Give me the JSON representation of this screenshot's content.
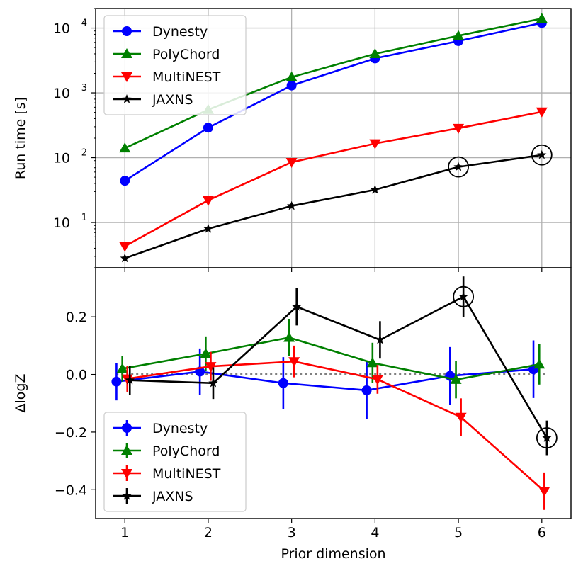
{
  "chart_data": [
    {
      "type": "line",
      "yscale": "log",
      "ylabel": "Run time [s]",
      "xlabel": "",
      "x": [
        1,
        2,
        3,
        4,
        5,
        6
      ],
      "xlim": [
        0.65,
        6.35
      ],
      "ylim": [
        2.0,
        20000
      ],
      "grid": true,
      "xticks": [
        1,
        2,
        3,
        4,
        5,
        6
      ],
      "yticks": [
        {
          "value": 10,
          "base": "10",
          "exp": "1"
        },
        {
          "value": 100,
          "base": "10",
          "exp": "2"
        },
        {
          "value": 1000,
          "base": "10",
          "exp": "3"
        },
        {
          "value": 10000,
          "base": "10",
          "exp": "4"
        }
      ],
      "legend_position": "top-left",
      "series": [
        {
          "name": "Dynesty",
          "color": "#0000ff",
          "marker": "circle",
          "values": [
            44,
            290,
            1300,
            3400,
            6300,
            12000
          ]
        },
        {
          "name": "PolyChord",
          "color": "#008000",
          "marker": "triangle-up",
          "values": [
            140,
            550,
            1750,
            4000,
            7600,
            14000
          ]
        },
        {
          "name": "MultiNEST",
          "color": "#ff0000",
          "marker": "triangle-down",
          "values": [
            4.3,
            22,
            85,
            165,
            285,
            510
          ]
        },
        {
          "name": "JAXNS",
          "color": "#000000",
          "marker": "star",
          "values": [
            2.8,
            8,
            18,
            32,
            72,
            110
          ]
        }
      ],
      "circled_points": [
        {
          "series": "JAXNS",
          "x": 5
        },
        {
          "series": "JAXNS",
          "x": 6
        }
      ]
    },
    {
      "type": "line",
      "ylabel": "ΔlogZ",
      "xlabel": "Prior dimension",
      "x": [
        1,
        2,
        3,
        4,
        5,
        6
      ],
      "xlim": [
        0.65,
        6.35
      ],
      "ylim": [
        -0.5,
        0.37
      ],
      "grid": false,
      "xticks": [
        1,
        2,
        3,
        4,
        5,
        6
      ],
      "yticks": [
        {
          "value": 0.2,
          "label": "0.2"
        },
        {
          "value": 0.0,
          "label": "0.0"
        },
        {
          "value": -0.2,
          "label": "−0.2"
        },
        {
          "value": -0.4,
          "label": "−0.4"
        }
      ],
      "reference_line": {
        "y": 0,
        "style": "dotted",
        "color": "#808080"
      },
      "legend_position": "bottom-left",
      "series": [
        {
          "name": "Dynesty",
          "color": "#0000ff",
          "marker": "circle",
          "x_offset": -0.1,
          "values": [
            -0.025,
            0.01,
            -0.03,
            -0.055,
            -0.005,
            0.018
          ],
          "errors": [
            0.065,
            0.08,
            0.09,
            0.1,
            0.1,
            0.1
          ]
        },
        {
          "name": "PolyChord",
          "color": "#008000",
          "marker": "triangle-up",
          "x_offset": -0.03,
          "values": [
            0.02,
            0.072,
            0.128,
            0.04,
            -0.018,
            0.035
          ],
          "errors": [
            0.045,
            0.06,
            0.065,
            0.07,
            0.065,
            0.07
          ]
        },
        {
          "name": "MultiNEST",
          "color": "#ff0000",
          "marker": "triangle-down",
          "x_offset": 0.03,
          "values": [
            -0.015,
            0.028,
            0.045,
            -0.017,
            -0.148,
            -0.405
          ],
          "errors": [
            0.045,
            0.05,
            0.055,
            0.05,
            0.065,
            0.065
          ]
        },
        {
          "name": "JAXNS",
          "color": "#000000",
          "marker": "star",
          "x_offset": 0.06,
          "values": [
            -0.02,
            -0.03,
            0.235,
            0.12,
            0.27,
            -0.22
          ],
          "errors": [
            0.05,
            0.055,
            0.065,
            0.065,
            0.07,
            0.06
          ]
        }
      ],
      "circled_points": [
        {
          "series": "JAXNS",
          "x": 5
        },
        {
          "series": "JAXNS",
          "x": 6
        }
      ]
    }
  ]
}
